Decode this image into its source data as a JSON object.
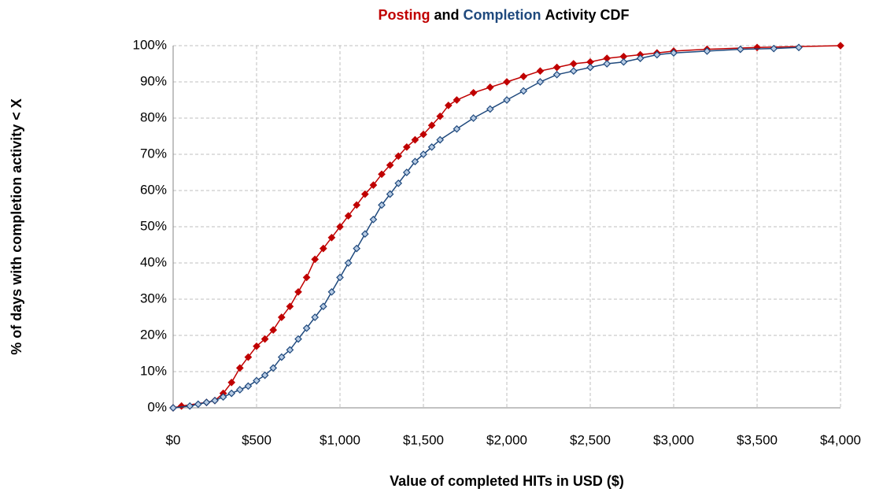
{
  "chart_data": {
    "type": "line",
    "title": [
      {
        "text": "Posting",
        "color": "#c00000"
      },
      {
        "text": "and",
        "color": "#000000"
      },
      {
        "text": "Completion",
        "color": "#1f497d"
      },
      {
        "text": "Activity CDF",
        "color": "#000000"
      }
    ],
    "x_label": "Value of completed HITs in USD ($)",
    "y_label": "% of days with completion activity < X",
    "xlim": [
      0,
      4000
    ],
    "ylim": [
      0,
      100
    ],
    "xticks": [
      {
        "value": 0,
        "label": "$0"
      },
      {
        "value": 500,
        "label": "$500"
      },
      {
        "value": 1000,
        "label": "$1,000"
      },
      {
        "value": 1500,
        "label": "$1,500"
      },
      {
        "value": 2000,
        "label": "$2,000"
      },
      {
        "value": 2500,
        "label": "$2,500"
      },
      {
        "value": 3000,
        "label": "$3,000"
      },
      {
        "value": 3500,
        "label": "$3,500"
      },
      {
        "value": 4000,
        "label": "$4,000"
      }
    ],
    "yticks": [
      {
        "value": 0,
        "label": "0%"
      },
      {
        "value": 10,
        "label": "10%"
      },
      {
        "value": 20,
        "label": "20%"
      },
      {
        "value": 30,
        "label": "30%"
      },
      {
        "value": 40,
        "label": "40%"
      },
      {
        "value": 50,
        "label": "50%"
      },
      {
        "value": 60,
        "label": "60%"
      },
      {
        "value": 70,
        "label": "70%"
      },
      {
        "value": 80,
        "label": "80%"
      },
      {
        "value": 90,
        "label": "90%"
      },
      {
        "value": 100,
        "label": "100%"
      }
    ],
    "grid": true,
    "series": [
      {
        "name": "Posting",
        "color": "#c00000",
        "marker_fill": "#c00000",
        "x": [
          0,
          50,
          200,
          250,
          300,
          350,
          400,
          450,
          500,
          550,
          600,
          650,
          700,
          750,
          800,
          850,
          900,
          950,
          1000,
          1050,
          1100,
          1150,
          1200,
          1250,
          1300,
          1350,
          1400,
          1450,
          1500,
          1550,
          1600,
          1650,
          1700,
          1800,
          1900,
          2000,
          2100,
          2200,
          2300,
          2400,
          2500,
          2600,
          2700,
          2800,
          2900,
          3000,
          3200,
          3500,
          4000
        ],
        "values": [
          0,
          0.5,
          1.5,
          2,
          4,
          7,
          11,
          14,
          17,
          19,
          21.5,
          25,
          28,
          32,
          36,
          41,
          44,
          47,
          50,
          53,
          56,
          59,
          61.5,
          64.5,
          67,
          69.5,
          72,
          74,
          75.5,
          78,
          80.5,
          83.5,
          85,
          87,
          88.5,
          90,
          91.5,
          93,
          94,
          95,
          95.5,
          96.5,
          97,
          97.5,
          98,
          98.5,
          99,
          99.5,
          100
        ]
      },
      {
        "name": "Completion",
        "color": "#1f497d",
        "marker_fill": "#b8cce4",
        "x": [
          0,
          100,
          150,
          200,
          250,
          300,
          350,
          400,
          450,
          500,
          550,
          600,
          650,
          700,
          750,
          800,
          850,
          900,
          950,
          1000,
          1050,
          1100,
          1150,
          1200,
          1250,
          1300,
          1350,
          1400,
          1450,
          1500,
          1550,
          1600,
          1700,
          1800,
          1900,
          2000,
          2100,
          2200,
          2300,
          2400,
          2500,
          2600,
          2700,
          2800,
          2900,
          3000,
          3200,
          3400,
          3600,
          3750
        ],
        "values": [
          0,
          0.5,
          1,
          1.5,
          2,
          3,
          4,
          5,
          6,
          7.5,
          9,
          11,
          14,
          16,
          19,
          22,
          25,
          28,
          32,
          36,
          40,
          44,
          48,
          52,
          56,
          59,
          62,
          65,
          68,
          70,
          72,
          74,
          77,
          80,
          82.5,
          85,
          87.5,
          90,
          92,
          93,
          94,
          95,
          95.5,
          96.5,
          97.5,
          98,
          98.5,
          99,
          99.2,
          99.5
        ]
      }
    ]
  }
}
